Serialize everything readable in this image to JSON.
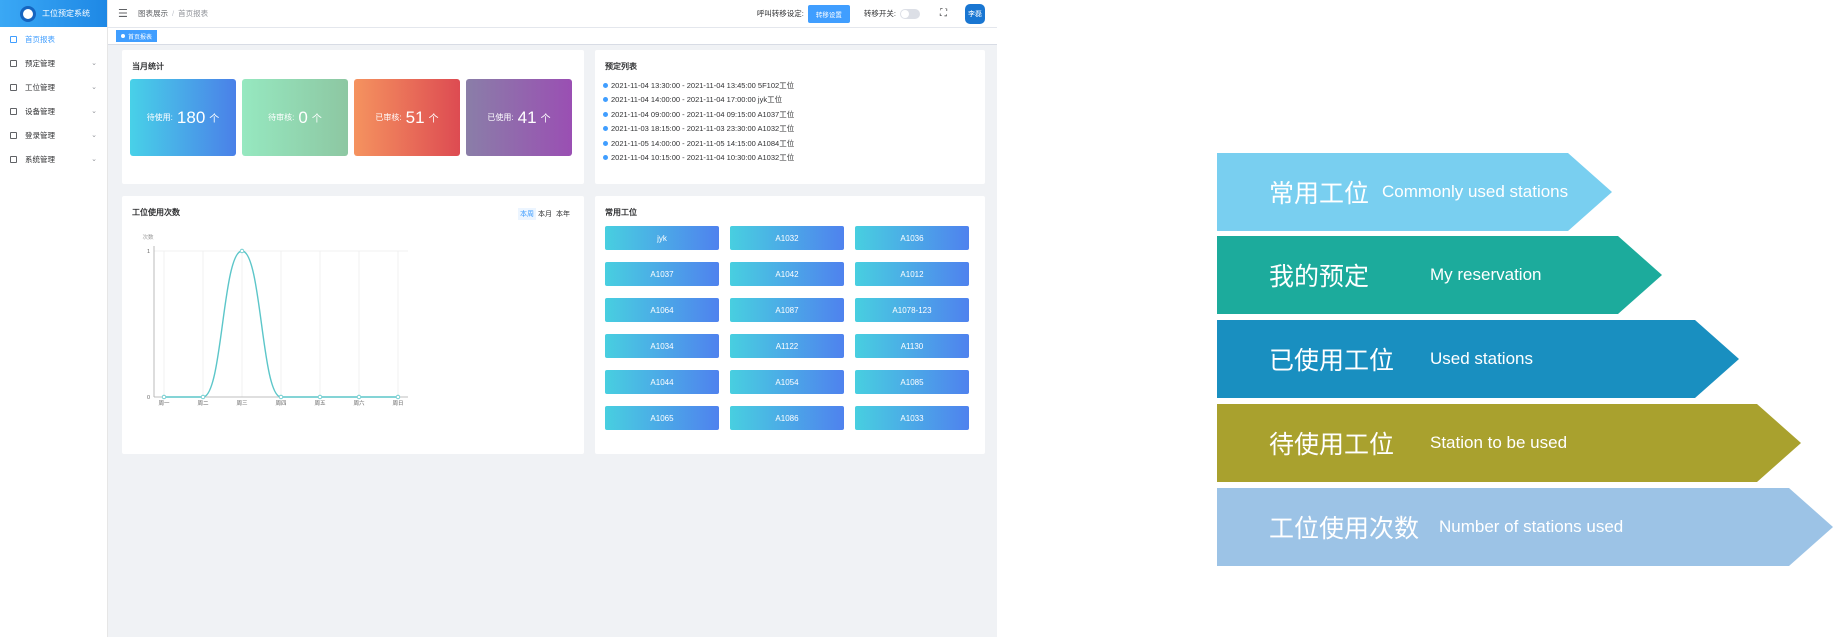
{
  "brand": {
    "name": "工位预定系统"
  },
  "sidebar": {
    "items": [
      {
        "label": "首页报表",
        "icon": "report-icon",
        "active": true
      },
      {
        "label": "预定管理",
        "icon": "calendar-icon"
      },
      {
        "label": "工位管理",
        "icon": "desk-icon"
      },
      {
        "label": "设备管理",
        "icon": "device-icon"
      },
      {
        "label": "登录管理",
        "icon": "user-icon"
      },
      {
        "label": "系统管理",
        "icon": "settings-icon"
      }
    ]
  },
  "header": {
    "breadcrumb": [
      "图表展示",
      "首页报表"
    ],
    "call_label": "呼叫转移设定:",
    "call_button": "转移设置",
    "transfer_label": "转移开关:",
    "avatar_text": "李磊",
    "tag": "首页报表"
  },
  "monthly": {
    "title": "当月统计",
    "stats": [
      {
        "label": "待使用:",
        "value": "180",
        "unit": "个",
        "colors": [
          "#48d1e8",
          "#4a80e8"
        ]
      },
      {
        "label": "待审核:",
        "value": "0",
        "unit": "个",
        "colors": [
          "#96e8c0",
          "#8dc7a2"
        ]
      },
      {
        "label": "已审核:",
        "value": "51",
        "unit": "个",
        "colors": [
          "#f5935f",
          "#dd4b52"
        ]
      },
      {
        "label": "已使用:",
        "value": "41",
        "unit": "个",
        "colors": [
          "#8a7ea8",
          "#9a4fb3"
        ]
      }
    ]
  },
  "reservations": {
    "title": "预定列表",
    "items": [
      "2021-11-04 13:30:00 - 2021-11-04 13:45:00 5F102工位",
      "2021-11-04 14:00:00 - 2021-11-04 17:00:00 jyk工位",
      "2021-11-04 09:00:00 - 2021-11-04 09:15:00 A1037工位",
      "2021-11-03 18:15:00 - 2021-11-03 23:30:00 A1032工位",
      "2021-11-05 14:00:00 - 2021-11-05 14:15:00 A1084工位",
      "2021-11-04 10:15:00 - 2021-11-04 10:30:00 A1032工位"
    ]
  },
  "usage": {
    "title": "工位使用次数",
    "periods": [
      "本周",
      "本月",
      "本年"
    ],
    "active_period": "本周"
  },
  "chart_data": {
    "type": "line",
    "categories": [
      "周一",
      "周二",
      "周三",
      "周四",
      "周五",
      "周六",
      "周日"
    ],
    "values": [
      0,
      0,
      1,
      0,
      0,
      0,
      0
    ],
    "ylabel": "次数",
    "ylim": [
      0,
      1
    ],
    "yticks": [
      "0",
      "1"
    ],
    "color": "#5cc6c9",
    "smooth": true
  },
  "stations": {
    "title": "常用工位",
    "items": [
      "jyk",
      "A1032",
      "A1036",
      "A1037",
      "A1042",
      "A1012",
      "A1064",
      "A1087",
      "A1078-123",
      "A1034",
      "A1122",
      "A1130",
      "A1044",
      "A1054",
      "A1085",
      "A1065",
      "A1086",
      "A1033"
    ]
  },
  "legend": [
    {
      "zh": "常用工位",
      "en": "Commonly used stations",
      "color": "#79cff0"
    },
    {
      "zh": "我的预定",
      "en": "My reservation",
      "color": "#1cab9c"
    },
    {
      "zh": "已使用工位",
      "en": "Used stations",
      "color": "#198fc0"
    },
    {
      "zh": "待使用工位",
      "en": "Station to be used",
      "color": "#a9a12e"
    },
    {
      "zh": "工位使用次数",
      "en": "Number of stations used",
      "color": "#9cc3e6"
    }
  ]
}
